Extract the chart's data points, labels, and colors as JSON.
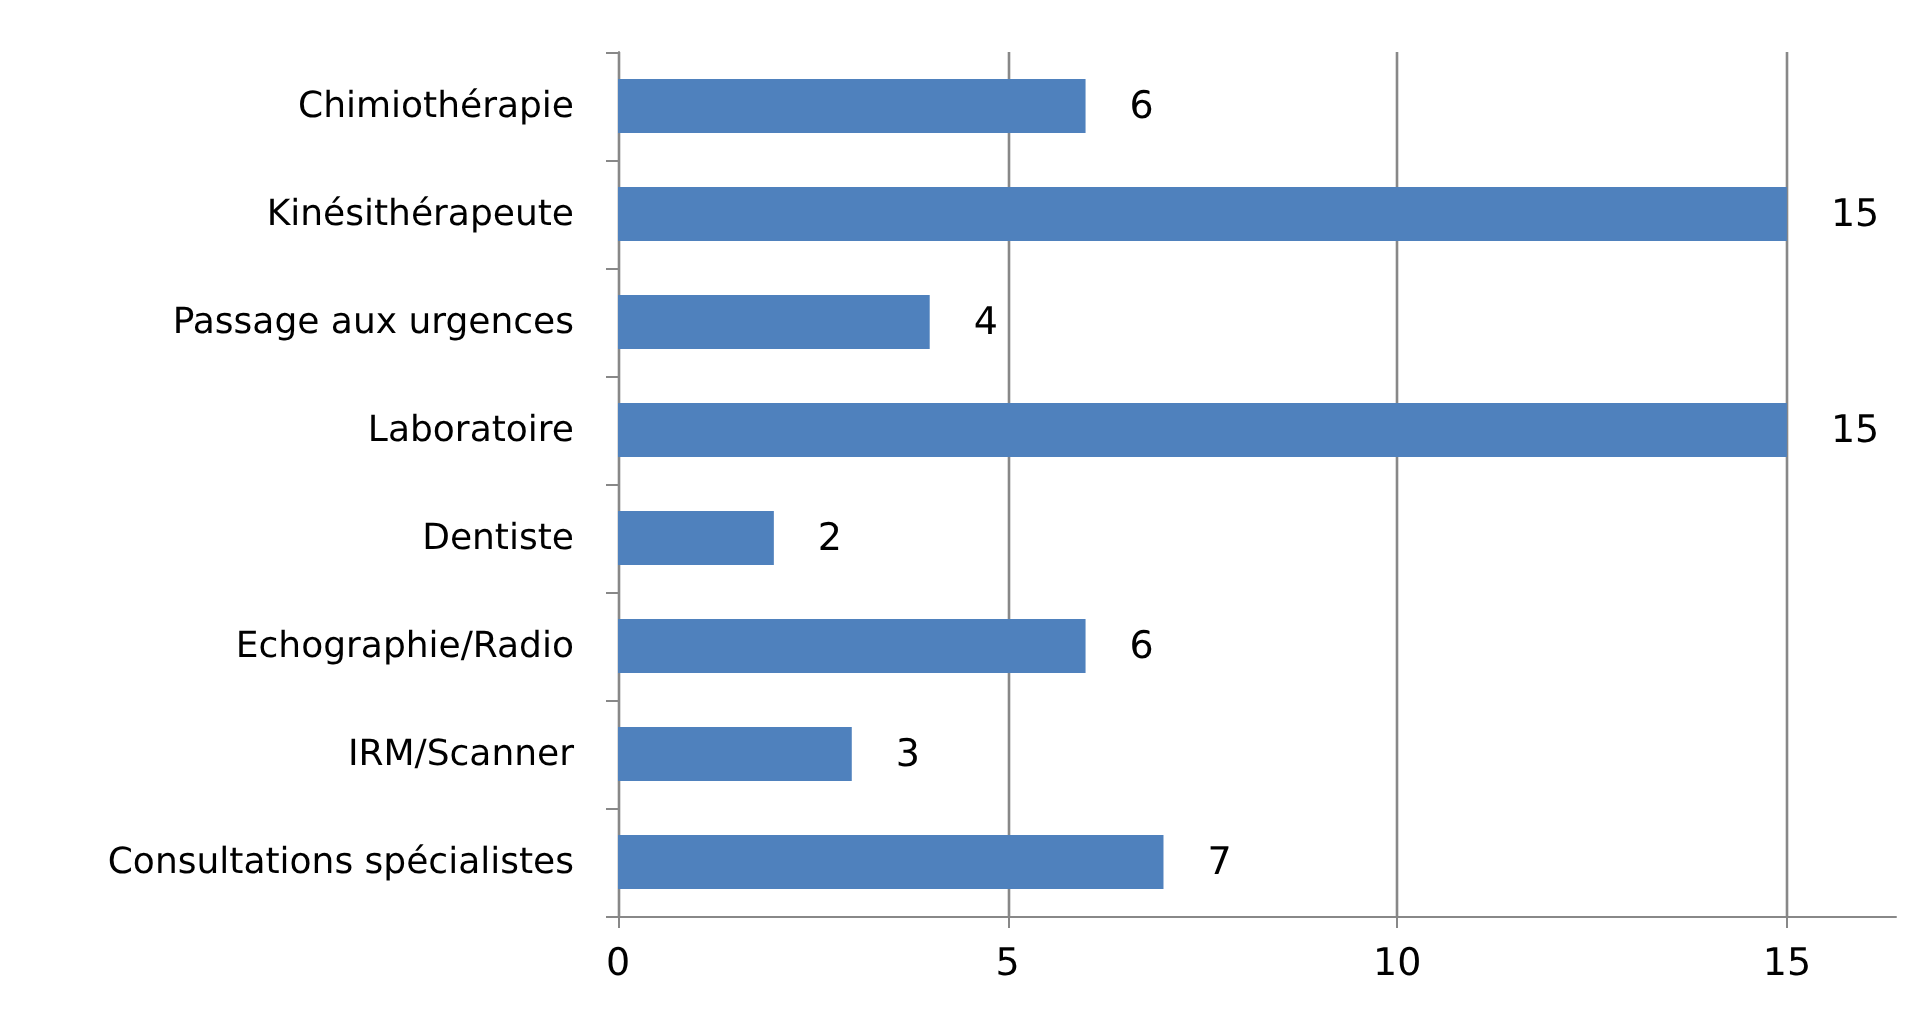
{
  "chart_data": {
    "type": "bar",
    "orientation": "horizontal",
    "categories": [
      "Chimiothérapie",
      "Kinésithérapeute",
      "Passage aux urgences",
      "Laboratoire",
      "Dentiste",
      "Echographie/Radio",
      "IRM/Scanner",
      "Consultations spécialistes"
    ],
    "values": [
      6,
      15,
      4,
      15,
      2,
      6,
      3,
      7
    ],
    "color": "#4f81bd",
    "xlim": [
      0,
      16.4
    ],
    "xticks": [
      0,
      5,
      10,
      15
    ],
    "grid": "x",
    "data_labels": true
  }
}
